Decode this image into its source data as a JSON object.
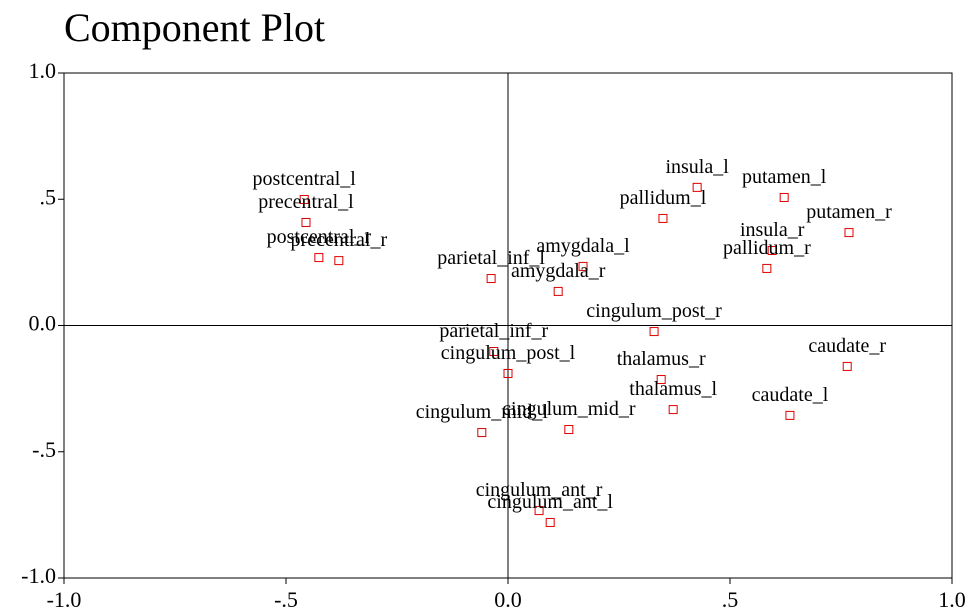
{
  "chart_data": {
    "type": "scatter",
    "title": "Component Plot",
    "point_labels": [
      "postcentral_l",
      "precentral_l",
      "postcentral_r",
      "precentral_r",
      "parietal_inf_l",
      "amygdala_l",
      "amygdala_r",
      "insula_l",
      "putamen_l",
      "pallidum_l",
      "putamen_r",
      "insula_r",
      "pallidum_r",
      "cingulum_post_r",
      "parietal_inf_r",
      "cingulum_post_l",
      "thalamus_r",
      "caudate_r",
      "thalamus_l",
      "caudate_l",
      "cingulum_mid_l",
      "cingulum_mid_r",
      "cingulum_ant_r",
      "cingulum_ant_l"
    ],
    "x": [
      -0.459,
      -0.455,
      -0.426,
      -0.381,
      -0.038,
      0.169,
      0.113,
      0.426,
      0.622,
      0.349,
      0.768,
      0.595,
      0.583,
      0.329,
      -0.032,
      0.0,
      0.345,
      0.764,
      0.372,
      0.635,
      -0.059,
      0.137,
      0.07,
      0.095
    ],
    "values": [
      0.499,
      0.408,
      0.269,
      0.257,
      0.186,
      0.234,
      0.135,
      0.547,
      0.507,
      0.424,
      0.368,
      0.297,
      0.226,
      -0.024,
      -0.103,
      -0.19,
      -0.214,
      -0.162,
      -0.333,
      -0.356,
      -0.424,
      -0.412,
      -0.733,
      -0.78
    ],
    "color": "#e00000",
    "marker": "square",
    "xlim": [
      -1.0,
      1.0
    ],
    "ylim": [
      -1.0,
      1.0
    ],
    "xticks": [
      {
        "value": -1.0,
        "label": "-1.0"
      },
      {
        "value": -0.5,
        "label": "-.5"
      },
      {
        "value": 0.0,
        "label": "0.0"
      },
      {
        "value": 0.5,
        "label": ".5"
      },
      {
        "value": 1.0,
        "label": "1.0"
      }
    ],
    "yticks": [
      {
        "value": -1.0,
        "label": "-1.0"
      },
      {
        "value": -0.5,
        "label": "-.5"
      },
      {
        "value": 0.0,
        "label": "0.0"
      },
      {
        "value": 0.5,
        "label": ".5"
      },
      {
        "value": 1.0,
        "label": "1.0"
      }
    ],
    "reference_lines": {
      "x": 0,
      "y": 0
    }
  }
}
